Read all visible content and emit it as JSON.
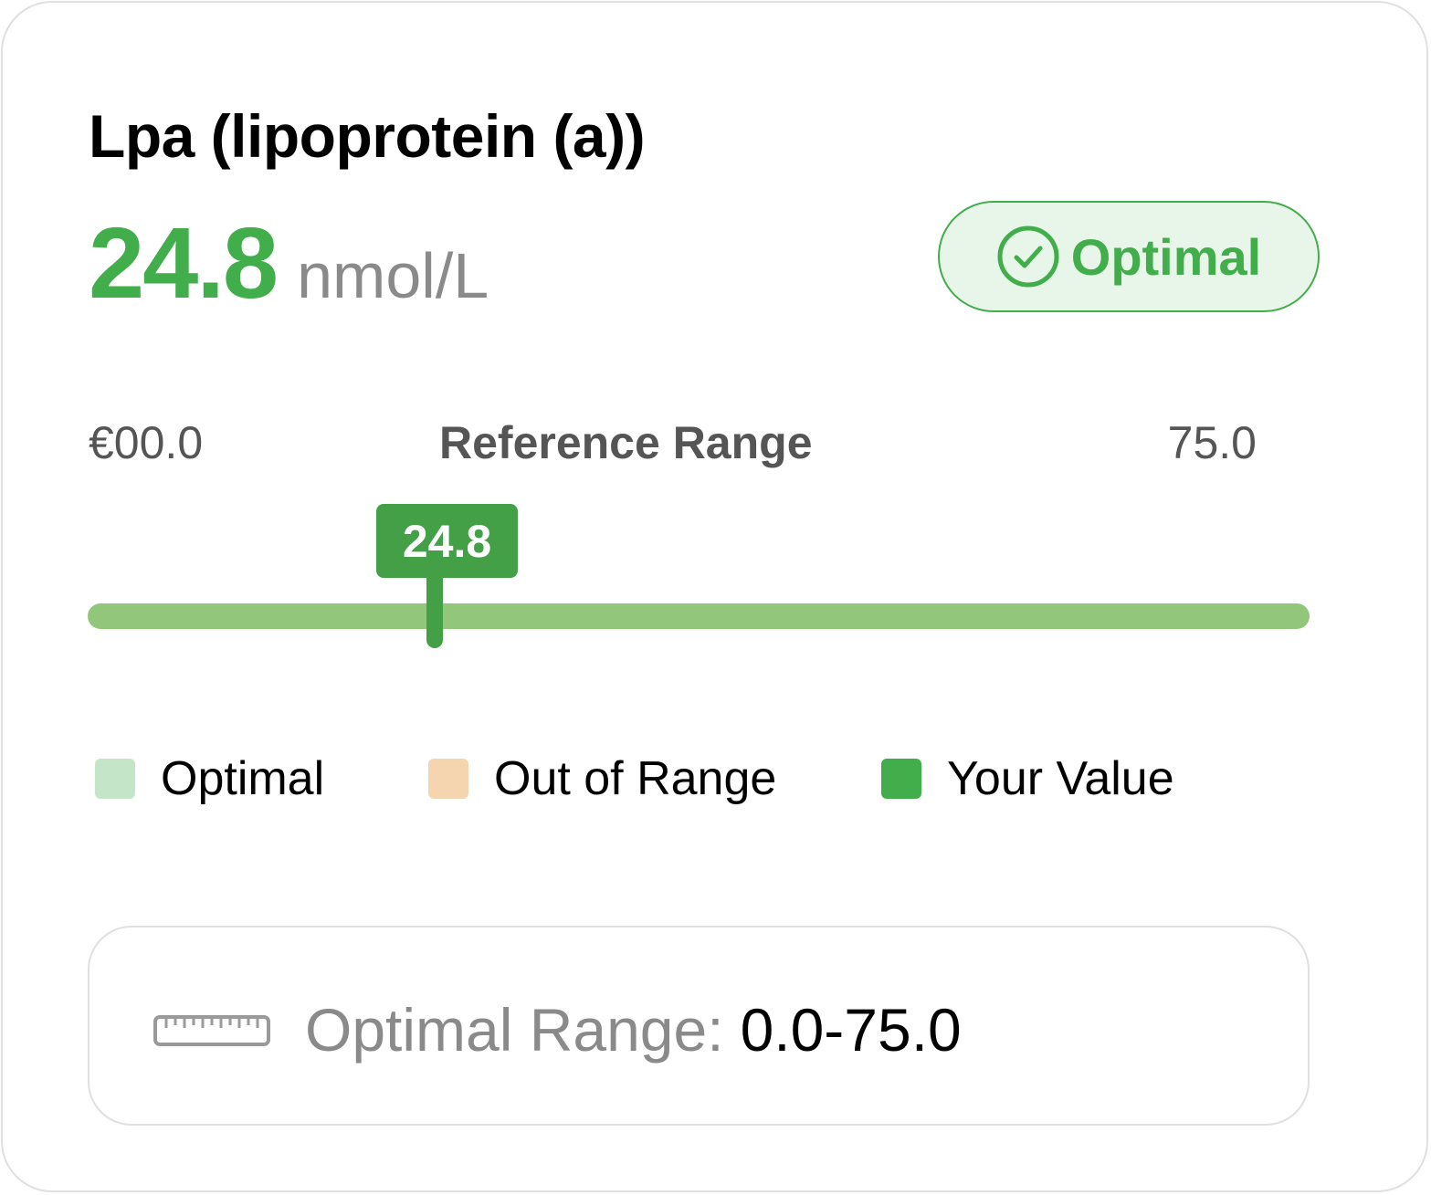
{
  "biomarker": {
    "name": "Lpa (lipoprotein (a))",
    "value": "24.8",
    "unit": "nmol/L",
    "status": "Optimal"
  },
  "reference": {
    "min_label": "€00.0",
    "label": "Reference Range",
    "max_label": "75.0",
    "marker_label": "24.8"
  },
  "legend": [
    {
      "label": "Optimal",
      "color": "#c5e5c8"
    },
    {
      "label": "Out of Range",
      "color": "#f5d5b0"
    },
    {
      "label": "Your Value",
      "color": "#42ad4b"
    }
  ],
  "optimal_range": {
    "label": "Optimal Range:",
    "value": "0.0-75.0"
  },
  "colors": {
    "accent": "#42ad4b",
    "badge_bg": "#e8f6e9",
    "track": "#92c67b",
    "marker": "#43a047"
  },
  "icons": {
    "status": "check-circle-icon",
    "range": "ruler-icon"
  }
}
